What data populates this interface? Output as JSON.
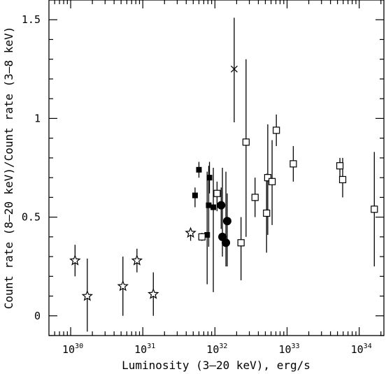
{
  "chart_data": {
    "type": "scatter",
    "xlabel": "Luminosity (3–20 keV), erg/s",
    "ylabel": "Count rate (8–20 keV)/Count rate (3–8 keV)",
    "x_scale": "log",
    "xlim": [
      5e+29,
      2.2e+34
    ],
    "ylim": [
      -0.1,
      1.6
    ],
    "grid": false,
    "legend": "none",
    "x_ticks": [
      {
        "value": 1e+30,
        "base": "10",
        "exp": "30"
      },
      {
        "value": 1e+31,
        "base": "10",
        "exp": "31"
      },
      {
        "value": 1e+32,
        "base": "10",
        "exp": "32"
      },
      {
        "value": 1e+33,
        "base": "10",
        "exp": "33"
      },
      {
        "value": 1e+34,
        "base": "10",
        "exp": "34"
      }
    ],
    "y_ticks": [
      {
        "value": 0,
        "label": "0"
      },
      {
        "value": 0.5,
        "label": "0.5"
      },
      {
        "value": 1,
        "label": "1"
      },
      {
        "value": 1.5,
        "label": "1.5"
      }
    ],
    "series": [
      {
        "marker": "star",
        "points": [
          {
            "x": 1.15e+30,
            "y": 0.28,
            "ylo": 0.2,
            "yhi": 0.36
          },
          {
            "x": 1.7e+30,
            "y": 0.1,
            "ylo": -0.08,
            "yhi": 0.29
          },
          {
            "x": 5.3e+30,
            "y": 0.15,
            "ylo": 0.0,
            "yhi": 0.3
          },
          {
            "x": 8.3e+30,
            "y": 0.28,
            "ylo": 0.22,
            "yhi": 0.34
          },
          {
            "x": 1.4e+31,
            "y": 0.11,
            "ylo": 0.0,
            "yhi": 0.22
          },
          {
            "x": 4.6e+31,
            "y": 0.42,
            "ylo": 0.38,
            "yhi": 0.44
          }
        ]
      },
      {
        "marker": "filled-square",
        "points": [
          {
            "x": 5.3e+31,
            "y": 0.61,
            "ylo": 0.55,
            "yhi": 0.65
          },
          {
            "x": 6e+31,
            "y": 0.74,
            "ylo": 0.7,
            "yhi": 0.78
          },
          {
            "x": 7.8e+31,
            "y": 0.41,
            "ylo": 0.16,
            "yhi": 0.73
          },
          {
            "x": 8.2e+31,
            "y": 0.56,
            "ylo": 0.35,
            "yhi": 0.76
          },
          {
            "x": 8.4e+31,
            "y": 0.7,
            "ylo": 0.62,
            "yhi": 0.78
          },
          {
            "x": 9.5e+31,
            "y": 0.55,
            "ylo": 0.12,
            "yhi": 0.75
          }
        ]
      },
      {
        "marker": "filled-circle",
        "points": [
          {
            "x": 1.22e+32,
            "y": 0.56,
            "ylo": 0.44,
            "yhi": 0.65
          },
          {
            "x": 1.27e+32,
            "y": 0.4,
            "ylo": 0.3,
            "yhi": 0.75
          },
          {
            "x": 1.42e+32,
            "y": 0.37,
            "ylo": 0.25,
            "yhi": 0.73
          },
          {
            "x": 1.48e+32,
            "y": 0.48,
            "ylo": 0.25,
            "yhi": 0.62
          }
        ]
      },
      {
        "marker": "cross",
        "points": [
          {
            "x": 1.85e+32,
            "y": 1.25,
            "ylo": 0.98,
            "yhi": 1.51
          }
        ]
      },
      {
        "marker": "open-square",
        "points": [
          {
            "x": 6.6e+31,
            "y": 0.4,
            "ylo": 0.38,
            "yhi": 0.42
          },
          {
            "x": 1.07e+32,
            "y": 0.62,
            "ylo": 0.53,
            "yhi": 0.68
          },
          {
            "x": 2.3e+32,
            "y": 0.37,
            "ylo": 0.18,
            "yhi": 0.5
          },
          {
            "x": 2.7e+32,
            "y": 0.88,
            "ylo": 0.4,
            "yhi": 1.3
          },
          {
            "x": 3.6e+32,
            "y": 0.6,
            "ylo": 0.5,
            "yhi": 0.7
          },
          {
            "x": 5.2e+32,
            "y": 0.52,
            "ylo": 0.32,
            "yhi": 0.72
          },
          {
            "x": 5.4e+32,
            "y": 0.7,
            "ylo": 0.41,
            "yhi": 0.97
          },
          {
            "x": 6.2e+32,
            "y": 0.68,
            "ylo": 0.46,
            "yhi": 0.89
          },
          {
            "x": 7.1e+32,
            "y": 0.94,
            "ylo": 0.86,
            "yhi": 1.02
          },
          {
            "x": 1.22e+33,
            "y": 0.77,
            "ylo": 0.68,
            "yhi": 0.86
          },
          {
            "x": 5.4e+33,
            "y": 0.76,
            "ylo": 0.7,
            "yhi": 0.8
          },
          {
            "x": 5.9e+33,
            "y": 0.69,
            "ylo": 0.6,
            "yhi": 0.8
          },
          {
            "x": 1.62e+34,
            "y": 0.54,
            "ylo": 0.25,
            "yhi": 0.83
          }
        ]
      }
    ]
  }
}
